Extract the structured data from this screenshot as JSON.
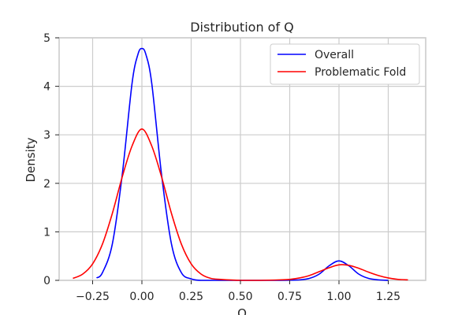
{
  "chart_data": {
    "type": "line",
    "title": "Distribution of Q",
    "xlabel": "Q",
    "ylabel": "Density",
    "xlim": [
      -0.42,
      1.44
    ],
    "ylim": [
      0,
      5
    ],
    "x_ticks": [
      -0.25,
      0.0,
      0.25,
      0.5,
      0.75,
      1.0,
      1.25
    ],
    "x_tick_labels": [
      "−0.25",
      "0.00",
      "0.25",
      "0.50",
      "0.75",
      "1.00",
      "1.25"
    ],
    "y_ticks": [
      0,
      1,
      2,
      3,
      4,
      5
    ],
    "y_tick_labels": [
      "0",
      "1",
      "2",
      "3",
      "4",
      "5"
    ],
    "grid": true,
    "legend_position": "top-right",
    "series": [
      {
        "name": "Overall",
        "color": "#0000ff",
        "x": [
          -0.23,
          -0.2,
          -0.15,
          -0.1,
          -0.05,
          -0.02,
          0.0,
          0.02,
          0.05,
          0.1,
          0.15,
          0.2,
          0.25,
          0.3,
          0.4,
          0.5,
          0.6,
          0.7,
          0.8,
          0.85,
          0.9,
          0.95,
          1.0,
          1.05,
          1.1,
          1.15,
          1.2,
          1.25
        ],
        "y": [
          0.05,
          0.16,
          0.75,
          2.17,
          4.06,
          4.66,
          4.78,
          4.66,
          4.06,
          2.17,
          0.75,
          0.16,
          0.03,
          0.0,
          0.0,
          0.0,
          0.0,
          0.0,
          0.01,
          0.04,
          0.13,
          0.3,
          0.4,
          0.3,
          0.13,
          0.04,
          0.01,
          0.0
        ]
      },
      {
        "name": "Problematic Fold",
        "color": "#ff0000",
        "x": [
          -0.35,
          -0.3,
          -0.25,
          -0.2,
          -0.15,
          -0.1,
          -0.05,
          0.0,
          0.05,
          0.1,
          0.15,
          0.2,
          0.25,
          0.3,
          0.35,
          0.4,
          0.5,
          0.6,
          0.7,
          0.75,
          0.8,
          0.85,
          0.9,
          0.95,
          1.0,
          1.05,
          1.1,
          1.15,
          1.2,
          1.25,
          1.3,
          1.35
        ],
        "y": [
          0.04,
          0.13,
          0.34,
          0.75,
          1.38,
          2.13,
          2.77,
          3.12,
          2.77,
          2.13,
          1.38,
          0.75,
          0.34,
          0.13,
          0.04,
          0.02,
          0.0,
          0.0,
          0.01,
          0.02,
          0.05,
          0.1,
          0.18,
          0.26,
          0.32,
          0.31,
          0.25,
          0.17,
          0.1,
          0.05,
          0.02,
          0.01
        ]
      }
    ]
  }
}
